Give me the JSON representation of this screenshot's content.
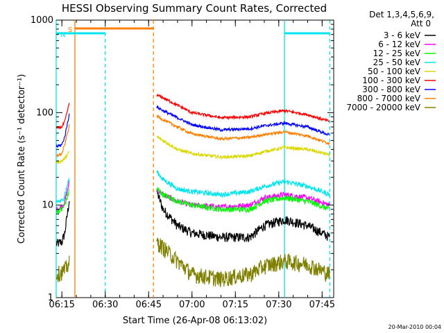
{
  "chart_data": {
    "type": "line",
    "title": "HESSI Observing Summary Count Rates, Corrected",
    "xlabel": "Start Time (26-Apr-08 06:13:02)",
    "ylabel": "Corrected Count Rate (s⁻¹ detector⁻¹)",
    "yscale": "log",
    "ylim": [
      1,
      1000
    ],
    "xlim": [
      "06:13:02",
      "07:49:00"
    ],
    "x_ticks": [
      "06:15",
      "06:30",
      "06:45",
      "07:00",
      "07:15",
      "07:30",
      "07:45"
    ],
    "y_ticks": [
      "1",
      "10",
      "100",
      "1000"
    ],
    "legend": {
      "position": "right",
      "header_lines": [
        "Det 1,3,4,5,6,9,",
        "Att 0"
      ]
    },
    "footer_date": "20-Mar-2010 00:04",
    "markers": [
      {
        "label": "S",
        "color": "#ff7f00",
        "start": "06:19:30",
        "end": "06:46:40"
      },
      {
        "label": "N",
        "color": "#00e5ee",
        "start": "06:13:02",
        "end": "06:30:00"
      },
      {
        "label": "",
        "color": "#00e5ee",
        "start": "07:32:00",
        "end": "07:47:40"
      }
    ],
    "vlines": [
      {
        "time": "06:13:02",
        "color": "#00e5ee",
        "style": "solid"
      },
      {
        "time": "06:19:30",
        "color": "#ff7f00",
        "style": "solid"
      },
      {
        "time": "06:30:00",
        "color": "#00e5ee",
        "style": "dashed"
      },
      {
        "time": "06:46:40",
        "color": "#ff7f00",
        "style": "dashed"
      },
      {
        "time": "07:32:00",
        "color": "#00e5ee",
        "style": "solid"
      },
      {
        "time": "07:47:40",
        "color": "#00e5ee",
        "style": "dashed"
      }
    ],
    "segments": [
      {
        "start": "06:13:02",
        "end": "06:17:40"
      },
      {
        "start": "06:47:50",
        "end": "07:47:40"
      }
    ],
    "series": [
      {
        "name": "3 - 6 keV",
        "color": "#000000",
        "noise": 0.12,
        "x": [
          "06:13:02",
          "06:15:00",
          "06:16:00",
          "06:17:40",
          "06:47:50",
          "06:50:00",
          "06:55:00",
          "07:00:00",
          "07:10:00",
          "07:20:00",
          "07:25:00",
          "07:32:00",
          "07:40:00",
          "07:47:40"
        ],
        "values": [
          3.8,
          4.0,
          5.0,
          12,
          14,
          9,
          6,
          5,
          4.5,
          4.5,
          6,
          7,
          6,
          4.5
        ]
      },
      {
        "name": "6 - 12 keV",
        "color": "#ff00ff",
        "noise": 0.07,
        "x": [
          "06:13:02",
          "06:15:00",
          "06:16:00",
          "06:17:40",
          "06:47:50",
          "06:50:00",
          "06:55:00",
          "07:00:00",
          "07:10:00",
          "07:20:00",
          "07:25:00",
          "07:32:00",
          "07:40:00",
          "07:47:40"
        ],
        "values": [
          9,
          9.5,
          11,
          18,
          15,
          13,
          11,
          10,
          9.5,
          10,
          12,
          13,
          12,
          10
        ]
      },
      {
        "name": "12 - 25 keV",
        "color": "#00ff00",
        "noise": 0.07,
        "x": [
          "06:13:02",
          "06:15:00",
          "06:16:00",
          "06:17:40",
          "06:47:50",
          "06:50:00",
          "06:55:00",
          "07:00:00",
          "07:10:00",
          "07:20:00",
          "07:25:00",
          "07:32:00",
          "07:40:00",
          "07:47:40"
        ],
        "values": [
          8.5,
          9,
          10,
          15,
          15,
          13,
          11,
          10,
          9,
          9,
          11,
          12,
          11,
          9
        ]
      },
      {
        "name": "25 - 50 keV",
        "color": "#00e5ee",
        "noise": 0.06,
        "x": [
          "06:13:02",
          "06:15:00",
          "06:16:00",
          "06:17:40",
          "06:47:50",
          "06:50:00",
          "06:55:00",
          "07:00:00",
          "07:10:00",
          "07:20:00",
          "07:25:00",
          "07:32:00",
          "07:40:00",
          "07:47:40"
        ],
        "values": [
          11,
          11,
          13,
          20,
          23,
          19,
          15,
          14,
          13,
          14,
          16,
          18,
          16,
          13
        ]
      },
      {
        "name": "50 - 100 keV",
        "color": "#d9d900",
        "noise": 0.04,
        "x": [
          "06:13:02",
          "06:15:00",
          "06:16:00",
          "06:17:40",
          "06:47:50",
          "06:50:00",
          "06:55:00",
          "07:00:00",
          "07:10:00",
          "07:20:00",
          "07:25:00",
          "07:32:00",
          "07:40:00",
          "07:47:40"
        ],
        "values": [
          29,
          30,
          32,
          38,
          55,
          50,
          40,
          36,
          33,
          34,
          38,
          42,
          40,
          35
        ]
      },
      {
        "name": "100 - 300 keV",
        "color": "#ff0000",
        "noise": 0.035,
        "x": [
          "06:13:02",
          "06:15:00",
          "06:16:00",
          "06:17:40",
          "06:47:50",
          "06:50:00",
          "06:55:00",
          "07:00:00",
          "07:10:00",
          "07:20:00",
          "07:25:00",
          "07:32:00",
          "07:40:00",
          "07:47:40"
        ],
        "values": [
          68,
          70,
          80,
          130,
          155,
          145,
          120,
          100,
          88,
          90,
          98,
          105,
          95,
          80
        ]
      },
      {
        "name": "300 - 800 keV",
        "color": "#0000ff",
        "noise": 0.035,
        "x": [
          "06:13:02",
          "06:15:00",
          "06:16:00",
          "06:17:40",
          "06:47:50",
          "06:50:00",
          "06:55:00",
          "07:00:00",
          "07:10:00",
          "07:20:00",
          "07:25:00",
          "07:32:00",
          "07:40:00",
          "07:47:40"
        ],
        "values": [
          43,
          45,
          55,
          100,
          115,
          105,
          88,
          74,
          65,
          67,
          72,
          77,
          70,
          57
        ]
      },
      {
        "name": "800 - 7000 keV",
        "color": "#ff7f00",
        "noise": 0.035,
        "x": [
          "06:13:02",
          "06:15:00",
          "06:16:00",
          "06:17:40",
          "06:47:50",
          "06:50:00",
          "06:55:00",
          "07:00:00",
          "07:10:00",
          "07:20:00",
          "07:25:00",
          "07:32:00",
          "07:40:00",
          "07:47:40"
        ],
        "values": [
          34,
          36,
          45,
          75,
          92,
          84,
          70,
          59,
          52,
          54,
          58,
          62,
          56,
          46
        ]
      },
      {
        "name": "7000 - 20000 keV",
        "color": "#808000",
        "noise": 0.2,
        "x": [
          "06:13:02",
          "06:15:00",
          "06:16:00",
          "06:17:40",
          "06:47:50",
          "06:50:00",
          "06:55:00",
          "07:00:00",
          "07:10:00",
          "07:20:00",
          "07:25:00",
          "07:32:00",
          "07:40:00",
          "07:47:40"
        ],
        "values": [
          1.8,
          1.9,
          2.0,
          2.4,
          4.0,
          3.5,
          2.5,
          1.8,
          1.6,
          1.8,
          2.2,
          2.5,
          2.3,
          1.8
        ]
      }
    ]
  }
}
